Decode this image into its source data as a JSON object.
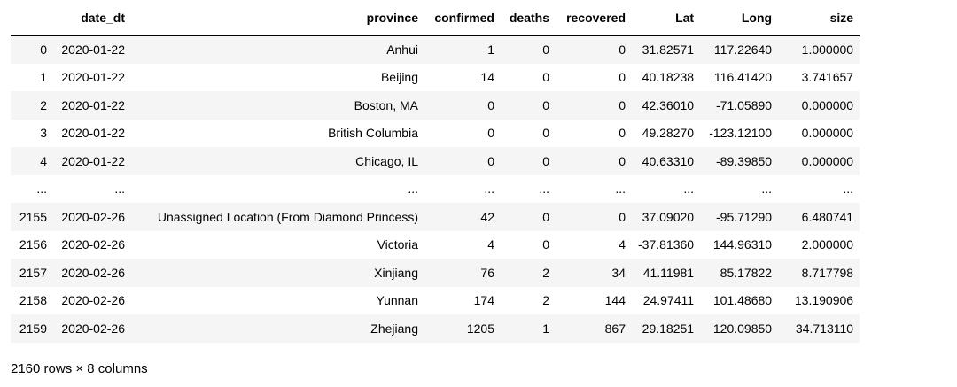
{
  "table": {
    "columns": [
      "",
      "date_dt",
      "province",
      "confirmed",
      "deaths",
      "recovered",
      "Lat",
      "Long",
      "size"
    ],
    "rows": [
      [
        "0",
        "2020-01-22",
        "Anhui",
        "1",
        "0",
        "0",
        "31.82571",
        "117.22640",
        "1.000000"
      ],
      [
        "1",
        "2020-01-22",
        "Beijing",
        "14",
        "0",
        "0",
        "40.18238",
        "116.41420",
        "3.741657"
      ],
      [
        "2",
        "2020-01-22",
        "Boston, MA",
        "0",
        "0",
        "0",
        "42.36010",
        "-71.05890",
        "0.000000"
      ],
      [
        "3",
        "2020-01-22",
        "British Columbia",
        "0",
        "0",
        "0",
        "49.28270",
        "-123.12100",
        "0.000000"
      ],
      [
        "4",
        "2020-01-22",
        "Chicago, IL",
        "0",
        "0",
        "0",
        "40.63310",
        "-89.39850",
        "0.000000"
      ],
      [
        "...",
        "...",
        "...",
        "...",
        "...",
        "...",
        "...",
        "...",
        "..."
      ],
      [
        "2155",
        "2020-02-26",
        "Unassigned Location (From Diamond Princess)",
        "42",
        "0",
        "0",
        "37.09020",
        "-95.71290",
        "6.480741"
      ],
      [
        "2156",
        "2020-02-26",
        "Victoria",
        "4",
        "0",
        "4",
        "-37.81360",
        "144.96310",
        "2.000000"
      ],
      [
        "2157",
        "2020-02-26",
        "Xinjiang",
        "76",
        "2",
        "34",
        "41.11981",
        "85.17822",
        "8.717798"
      ],
      [
        "2158",
        "2020-02-26",
        "Yunnan",
        "174",
        "2",
        "144",
        "24.97411",
        "101.48680",
        "13.190906"
      ],
      [
        "2159",
        "2020-02-26",
        "Zhejiang",
        "1205",
        "1",
        "867",
        "29.18251",
        "120.09850",
        "34.713110"
      ]
    ]
  },
  "shape_caption": "2160 rows × 8 columns"
}
